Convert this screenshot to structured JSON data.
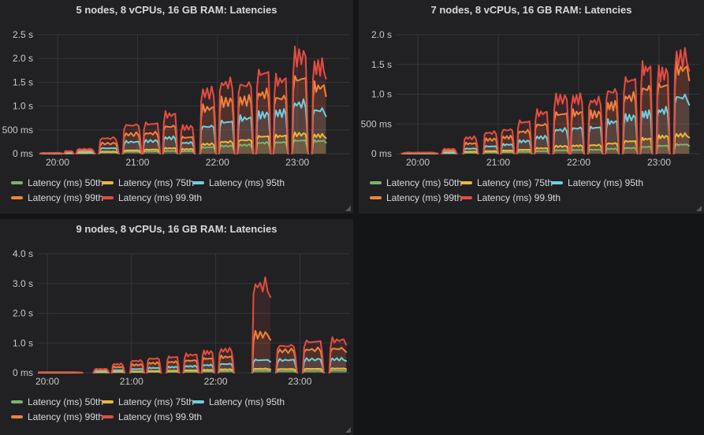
{
  "page": {
    "background": "#141517",
    "panel_background": "#212124",
    "title_color": "#d8d9da",
    "axis_text_color": "#c8c9ca",
    "grid_color": "#34363a"
  },
  "chart_data": [
    {
      "type": "area",
      "title": "5 nodes, 8 vCPUs, 16 GB RAM: Latencies",
      "legend_position": "bottom-left",
      "grid": true,
      "x_axis": {
        "ticks": [
          {
            "label": "20:00",
            "min": 15
          },
          {
            "label": "21:00",
            "min": 75
          },
          {
            "label": "22:00",
            "min": 135
          },
          {
            "label": "23:00",
            "min": 195
          }
        ]
      },
      "y_axis": {
        "max_ms": 2500,
        "ticks": [
          {
            "label": "0 ms",
            "ms": 0
          },
          {
            "label": "500 ms",
            "ms": 500
          },
          {
            "label": "1.0 s",
            "ms": 1000
          },
          {
            "label": "1.5 s",
            "ms": 1500
          },
          {
            "label": "2.0 s",
            "ms": 2000
          },
          {
            "label": "2.5 s",
            "ms": 2500
          }
        ]
      },
      "series": [
        {
          "name": "Latency (ms) 50th",
          "percentile": "50th",
          "color": "#7EB26D"
        },
        {
          "name": "Latency (ms) 75th",
          "percentile": "75th",
          "color": "#EAB839"
        },
        {
          "name": "Latency (ms) 95th",
          "percentile": "95th",
          "color": "#6ED0E0"
        },
        {
          "name": "Latency (ms) 99th",
          "percentile": "99th",
          "color": "#EF843C"
        },
        {
          "name": "Latency (ms) 99.9th",
          "percentile": "99.9th",
          "color": "#E24D42"
        }
      ],
      "bursts_note": "t=[start,end] minutes after 19:45; peaks_ms = peak latency per series in series[] order",
      "bursts": [
        {
          "t": [
            2,
            19
          ],
          "peaks_ms": [
            3,
            5,
            8,
            12,
            18
          ]
        },
        {
          "t": [
            20,
            27
          ],
          "peaks_ms": [
            6,
            10,
            18,
            38,
            55
          ]
        },
        {
          "t": [
            29,
            43
          ],
          "peaks_ms": [
            10,
            15,
            35,
            70,
            100
          ]
        },
        {
          "t": [
            46,
            61
          ],
          "peaks_ms": [
            28,
            45,
            120,
            225,
            340
          ]
        },
        {
          "t": [
            64,
            78
          ],
          "peaks_ms": [
            45,
            75,
            260,
            430,
            630
          ]
        },
        {
          "t": [
            79,
            92
          ],
          "peaks_ms": [
            50,
            90,
            280,
            450,
            660
          ]
        },
        {
          "t": [
            94,
            105
          ],
          "peaks_ms": [
            60,
            120,
            350,
            600,
            860
          ]
        },
        {
          "t": [
            107,
            118
          ],
          "peaks_ms": [
            55,
            100,
            240,
            360,
            580
          ]
        },
        {
          "t": [
            122,
            134
          ],
          "peaks_ms": [
            140,
            210,
            600,
            1000,
            1350
          ]
        },
        {
          "t": [
            136,
            148
          ],
          "peaks_ms": [
            170,
            260,
            700,
            1150,
            1550
          ]
        },
        {
          "t": [
            150,
            162
          ],
          "peaks_ms": [
            190,
            300,
            780,
            1180,
            1520
          ]
        },
        {
          "t": [
            164,
            175
          ],
          "peaks_ms": [
            240,
            380,
            860,
            1320,
            1780
          ]
        },
        {
          "t": [
            177,
            188
          ],
          "peaks_ms": [
            250,
            390,
            900,
            1230,
            1620
          ]
        },
        {
          "t": [
            191,
            203
          ],
          "peaks_ms": [
            290,
            430,
            1100,
            1650,
            2150
          ]
        },
        {
          "t": [
            206,
            216.5
          ],
          "cut": true,
          "peaks_ms": [
            280,
            400,
            960,
            1470,
            1920
          ]
        }
      ]
    },
    {
      "type": "area",
      "title": "7 nodes, 8 vCPUs, 16 GB RAM: Latencies",
      "legend_position": "bottom-left",
      "grid": true,
      "x_axis": {
        "ticks": [
          {
            "label": "20:00",
            "min": 15
          },
          {
            "label": "21:00",
            "min": 75
          },
          {
            "label": "22:00",
            "min": 135
          },
          {
            "label": "23:00",
            "min": 195
          }
        ]
      },
      "y_axis": {
        "max_ms": 2000,
        "ticks": [
          {
            "label": "0 ms",
            "ms": 0
          },
          {
            "label": "500 ms",
            "ms": 500
          },
          {
            "label": "1.0 s",
            "ms": 1000
          },
          {
            "label": "1.5 s",
            "ms": 1500
          },
          {
            "label": "2.0 s",
            "ms": 2000
          }
        ]
      },
      "series": [
        {
          "name": "Latency (ms) 50th",
          "percentile": "50th",
          "color": "#7EB26D"
        },
        {
          "name": "Latency (ms) 75th",
          "percentile": "75th",
          "color": "#EAB839"
        },
        {
          "name": "Latency (ms) 95th",
          "percentile": "95th",
          "color": "#6ED0E0"
        },
        {
          "name": "Latency (ms) 99th",
          "percentile": "99th",
          "color": "#EF843C"
        },
        {
          "name": "Latency (ms) 99.9th",
          "percentile": "99.9th",
          "color": "#E24D42"
        }
      ],
      "bursts_note": "t=[start,end] minutes after 19:45; peaks_ms = peak latency per series in series[] order",
      "bursts": [
        {
          "t": [
            3,
            30
          ],
          "peaks_ms": [
            3,
            5,
            8,
            14,
            20
          ]
        },
        {
          "t": [
            33,
            44
          ],
          "peaks_ms": [
            7,
            12,
            25,
            55,
            80
          ]
        },
        {
          "t": [
            49,
            60
          ],
          "peaks_ms": [
            18,
            35,
            90,
            180,
            280
          ]
        },
        {
          "t": [
            64,
            75
          ],
          "peaks_ms": [
            22,
            45,
            130,
            250,
            370
          ]
        },
        {
          "t": [
            77,
            87
          ],
          "peaks_ms": [
            28,
            55,
            160,
            290,
            420
          ]
        },
        {
          "t": [
            89,
            100
          ],
          "peaks_ms": [
            35,
            70,
            220,
            390,
            560
          ]
        },
        {
          "t": [
            102,
            113
          ],
          "peaks_ms": [
            45,
            95,
            290,
            510,
            720
          ]
        },
        {
          "t": [
            116,
            128
          ],
          "peaks_ms": [
            60,
            130,
            420,
            700,
            970
          ]
        },
        {
          "t": [
            129,
            139
          ],
          "peaks_ms": [
            65,
            140,
            450,
            720,
            970
          ]
        },
        {
          "t": [
            142,
            153
          ],
          "peaks_ms": [
            70,
            150,
            460,
            700,
            930
          ]
        },
        {
          "t": [
            155,
            165
          ],
          "peaks_ms": [
            85,
            180,
            560,
            850,
            1100
          ]
        },
        {
          "t": [
            168,
            179
          ],
          "peaks_ms": [
            100,
            220,
            640,
            1000,
            1300
          ]
        },
        {
          "t": [
            181,
            190
          ],
          "peaks_ms": [
            120,
            260,
            700,
            1150,
            1500
          ]
        },
        {
          "t": [
            193,
            203
          ],
          "peaks_ms": [
            140,
            300,
            760,
            1200,
            1420
          ]
        },
        {
          "t": [
            206,
            217.5
          ],
          "cut": true,
          "peaks_ms": [
            160,
            330,
            1000,
            1500,
            1700
          ]
        }
      ]
    },
    {
      "type": "area",
      "title": "9 nodes, 8 vCPUs, 16 GB RAM: Latencies",
      "legend_position": "bottom-left",
      "grid": true,
      "x_axis": {
        "ticks": [
          {
            "label": "20:00",
            "min": 15
          },
          {
            "label": "21:00",
            "min": 75
          },
          {
            "label": "22:00",
            "min": 135
          },
          {
            "label": "23:00",
            "min": 195
          }
        ]
      },
      "y_axis": {
        "max_ms": 4000,
        "ticks": [
          {
            "label": "0 ms",
            "ms": 0
          },
          {
            "label": "1.0 s",
            "ms": 1000
          },
          {
            "label": "2.0 s",
            "ms": 2000
          },
          {
            "label": "3.0 s",
            "ms": 3000
          },
          {
            "label": "4.0 s",
            "ms": 4000
          }
        ]
      },
      "series": [
        {
          "name": "Latency (ms) 50th",
          "percentile": "50th",
          "color": "#7EB26D"
        },
        {
          "name": "Latency (ms) 75th",
          "percentile": "75th",
          "color": "#EAB839"
        },
        {
          "name": "Latency (ms) 95th",
          "percentile": "95th",
          "color": "#6ED0E0"
        },
        {
          "name": "Latency (ms) 99th",
          "percentile": "99th",
          "color": "#EF843C"
        },
        {
          "name": "Latency (ms) 99.9th",
          "percentile": "99.9th",
          "color": "#E24D42"
        }
      ],
      "bursts_note": "t=[start,end] minutes after 19:45; peaks_ms = peak latency per series in series[] order; spike at ~22:30 reaches ~3.1 s",
      "bursts": [
        {
          "t": [
            3,
            40
          ],
          "peaks_ms": [
            3,
            5,
            8,
            14,
            20
          ]
        },
        {
          "t": [
            48,
            59
          ],
          "peaks_ms": [
            12,
            20,
            45,
            90,
            130
          ]
        },
        {
          "t": [
            61,
            70
          ],
          "peaks_ms": [
            20,
            35,
            90,
            200,
            300
          ]
        },
        {
          "t": [
            74,
            84
          ],
          "peaks_ms": [
            25,
            45,
            130,
            280,
            420
          ]
        },
        {
          "t": [
            86,
            96
          ],
          "peaks_ms": [
            30,
            60,
            170,
            340,
            500
          ]
        },
        {
          "t": [
            100,
            109
          ],
          "peaks_ms": [
            35,
            70,
            200,
            380,
            550
          ]
        },
        {
          "t": [
            112,
            123
          ],
          "peaks_ms": [
            40,
            85,
            230,
            430,
            630
          ]
        },
        {
          "t": [
            125,
            134
          ],
          "peaks_ms": [
            50,
            100,
            270,
            500,
            720
          ]
        },
        {
          "t": [
            137,
            148
          ],
          "peaks_ms": [
            60,
            120,
            310,
            560,
            800
          ]
        },
        {
          "t": [
            161,
            174
          ],
          "cut": true,
          "peaks_ms": [
            70,
            140,
            450,
            1350,
            3100
          ]
        },
        {
          "t": [
            178,
            193
          ],
          "peaks_ms": [
            65,
            130,
            450,
            780,
            950
          ]
        },
        {
          "t": [
            197,
            212
          ],
          "peaks_ms": [
            70,
            140,
            470,
            820,
            1100
          ]
        },
        {
          "t": [
            216,
            228
          ],
          "cut": true,
          "peaks_ms": [
            75,
            150,
            480,
            850,
            1150
          ]
        }
      ]
    }
  ]
}
